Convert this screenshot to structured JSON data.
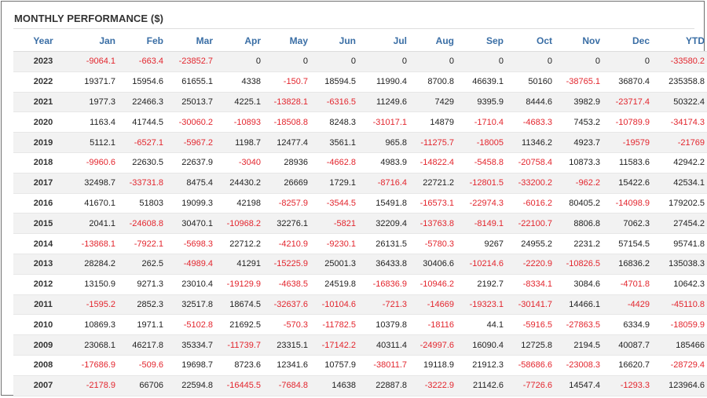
{
  "title": "MONTHLY PERFORMANCE ($)",
  "colors": {
    "negative": "#e3262e",
    "header": "#3a6ea5"
  },
  "headers": [
    "Year",
    "Jan",
    "Feb",
    "Mar",
    "Apr",
    "May",
    "Jun",
    "Jul",
    "Aug",
    "Sep",
    "Oct",
    "Nov",
    "Dec",
    "YTD"
  ],
  "rows": [
    [
      "2023",
      "-9064.1",
      "-663.4",
      "-23852.7",
      "0",
      "0",
      "0",
      "0",
      "0",
      "0",
      "0",
      "0",
      "0",
      "-33580.2"
    ],
    [
      "2022",
      "19371.7",
      "15954.6",
      "61655.1",
      "4338",
      "-150.7",
      "18594.5",
      "11990.4",
      "8700.8",
      "46639.1",
      "50160",
      "-38765.1",
      "36870.4",
      "235358.8"
    ],
    [
      "2021",
      "1977.3",
      "22466.3",
      "25013.7",
      "4225.1",
      "-13828.1",
      "-6316.5",
      "11249.6",
      "7429",
      "9395.9",
      "8444.6",
      "3982.9",
      "-23717.4",
      "50322.4"
    ],
    [
      "2020",
      "1163.4",
      "41744.5",
      "-30060.2",
      "-10893",
      "-18508.8",
      "8248.3",
      "-31017.1",
      "14879",
      "-1710.4",
      "-4683.3",
      "7453.2",
      "-10789.9",
      "-34174.3"
    ],
    [
      "2019",
      "5112.1",
      "-6527.1",
      "-5967.2",
      "1198.7",
      "12477.4",
      "3561.1",
      "965.8",
      "-11275.7",
      "-18005",
      "11346.2",
      "4923.7",
      "-19579",
      "-21769"
    ],
    [
      "2018",
      "-9960.6",
      "22630.5",
      "22637.9",
      "-3040",
      "28936",
      "-4662.8",
      "4983.9",
      "-14822.4",
      "-5458.8",
      "-20758.4",
      "10873.3",
      "11583.6",
      "42942.2"
    ],
    [
      "2017",
      "32498.7",
      "-33731.8",
      "8475.4",
      "24430.2",
      "26669",
      "1729.1",
      "-8716.4",
      "22721.2",
      "-12801.5",
      "-33200.2",
      "-962.2",
      "15422.6",
      "42534.1"
    ],
    [
      "2016",
      "41670.1",
      "51803",
      "19099.3",
      "42198",
      "-8257.9",
      "-3544.5",
      "15491.8",
      "-16573.1",
      "-22974.3",
      "-6016.2",
      "80405.2",
      "-14098.9",
      "179202.5"
    ],
    [
      "2015",
      "2041.1",
      "-24608.8",
      "30470.1",
      "-10968.2",
      "32276.1",
      "-5821",
      "32209.4",
      "-13763.8",
      "-8149.1",
      "-22100.7",
      "8806.8",
      "7062.3",
      "27454.2"
    ],
    [
      "2014",
      "-13868.1",
      "-7922.1",
      "-5698.3",
      "22712.2",
      "-4210.9",
      "-9230.1",
      "26131.5",
      "-5780.3",
      "9267",
      "24955.2",
      "2231.2",
      "57154.5",
      "95741.8"
    ],
    [
      "2013",
      "28284.2",
      "262.5",
      "-4989.4",
      "41291",
      "-15225.9",
      "25001.3",
      "36433.8",
      "30406.6",
      "-10214.6",
      "-2220.9",
      "-10826.5",
      "16836.2",
      "135038.3"
    ],
    [
      "2012",
      "13150.9",
      "9271.3",
      "23010.4",
      "-19129.9",
      "-4638.5",
      "24519.8",
      "-16836.9",
      "-10946.2",
      "2192.7",
      "-8334.1",
      "3084.6",
      "-4701.8",
      "10642.3"
    ],
    [
      "2011",
      "-1595.2",
      "2852.3",
      "32517.8",
      "18674.5",
      "-32637.6",
      "-10104.6",
      "-721.3",
      "-14669",
      "-19323.1",
      "-30141.7",
      "14466.1",
      "-4429",
      "-45110.8"
    ],
    [
      "2010",
      "10869.3",
      "1971.1",
      "-5102.8",
      "21692.5",
      "-570.3",
      "-11782.5",
      "10379.8",
      "-18116",
      "44.1",
      "-5916.5",
      "-27863.5",
      "6334.9",
      "-18059.9"
    ],
    [
      "2009",
      "23068.1",
      "46217.8",
      "35334.7",
      "-11739.7",
      "23315.1",
      "-17142.2",
      "40311.4",
      "-24997.6",
      "16090.4",
      "12725.8",
      "2194.5",
      "40087.7",
      "185466"
    ],
    [
      "2008",
      "-17686.9",
      "-509.6",
      "19698.7",
      "8723.6",
      "12341.6",
      "10757.9",
      "-38011.7",
      "19118.9",
      "21912.3",
      "-58686.6",
      "-23008.3",
      "16620.7",
      "-28729.4"
    ],
    [
      "2007",
      "-2178.9",
      "66706",
      "22594.8",
      "-16445.5",
      "-7684.8",
      "14638",
      "22887.8",
      "-3222.9",
      "21142.6",
      "-7726.6",
      "14547.4",
      "-1293.3",
      "123964.6"
    ]
  ]
}
